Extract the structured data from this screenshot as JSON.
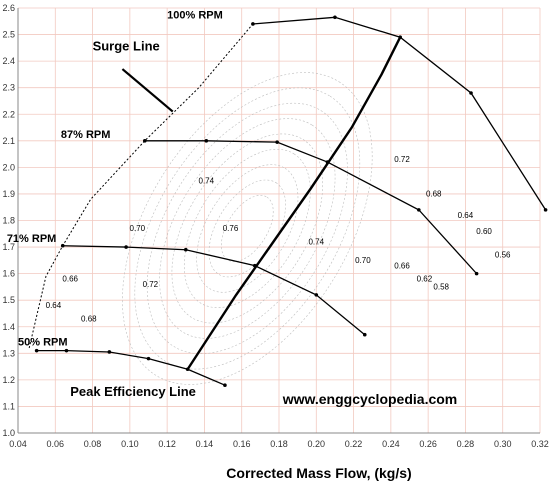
{
  "chart_data": {
    "type": "line",
    "xlabel": "Corrected Mass Flow, (kg/s)",
    "ylabel": "",
    "xlim": [
      0.04,
      0.32
    ],
    "ylim": [
      1.0,
      2.6
    ],
    "x_ticks": [
      "0.04",
      "0.06",
      "0.08",
      "0.10",
      "0.12",
      "0.14",
      "0.16",
      "0.18",
      "0.20",
      "0.22",
      "0.24",
      "0.26",
      "0.28",
      "0.30",
      "0.32"
    ],
    "y_ticks": [
      "1.0",
      "1.1",
      "1.2",
      "1.3",
      "1.4",
      "1.5",
      "1.6",
      "1.7",
      "1.8",
      "1.9",
      "2.0",
      "2.1",
      "2.2",
      "2.3",
      "2.4",
      "2.5",
      "2.6"
    ],
    "grid": true,
    "series": [
      {
        "name": "100% RPM",
        "x": [
          0.166,
          0.21,
          0.245,
          0.283,
          0.323
        ],
        "y": [
          2.54,
          2.565,
          2.49,
          2.28,
          1.84
        ],
        "style": "solid"
      },
      {
        "name": "87% RPM",
        "x": [
          0.108,
          0.141,
          0.179,
          0.206,
          0.255,
          0.286
        ],
        "y": [
          2.1,
          2.1,
          2.095,
          2.02,
          1.84,
          1.6
        ],
        "style": "solid"
      },
      {
        "name": "71% RPM",
        "x": [
          0.064,
          0.098,
          0.13,
          0.167,
          0.2,
          0.226
        ],
        "y": [
          1.705,
          1.7,
          1.69,
          1.63,
          1.52,
          1.37
        ],
        "style": "solid"
      },
      {
        "name": "50% RPM",
        "x": [
          0.05,
          0.066,
          0.089,
          0.11,
          0.131,
          0.151
        ],
        "y": [
          1.31,
          1.31,
          1.305,
          1.28,
          1.24,
          1.18
        ],
        "style": "solid"
      },
      {
        "name": "Surge Line",
        "x": [
          0.046,
          0.055,
          0.064,
          0.079,
          0.108,
          0.137,
          0.166
        ],
        "y": [
          1.32,
          1.59,
          1.705,
          1.88,
          2.1,
          2.3,
          2.54
        ],
        "style": "dashed"
      },
      {
        "name": "Peak Efficiency Line",
        "x": [
          0.131,
          0.157,
          0.177,
          0.197,
          0.219,
          0.235,
          0.245
        ],
        "y": [
          1.24,
          1.52,
          1.72,
          1.92,
          2.15,
          2.35,
          2.49
        ],
        "style": "bold"
      }
    ],
    "annotations": [
      {
        "text": "100% RPM",
        "x": 0.12,
        "y": 2.56
      },
      {
        "text": "87% RPM",
        "x": 0.063,
        "y": 2.11
      },
      {
        "text": "71% RPM",
        "x": 0.034,
        "y": 1.72
      },
      {
        "text": "50% RPM",
        "x": 0.04,
        "y": 1.33
      },
      {
        "text": "Surge Line",
        "x": 0.08,
        "y": 2.44
      },
      {
        "text": "Peak Efficiency Line",
        "x": 0.068,
        "y": 1.14
      },
      {
        "text": "www.enggcyclopedia.com",
        "x": 0.182,
        "y": 1.11
      }
    ],
    "efficiency_labels": [
      {
        "text": "0.74",
        "x": 0.141,
        "y": 1.94
      },
      {
        "text": "0.76",
        "x": 0.154,
        "y": 1.76
      },
      {
        "text": "0.74",
        "x": 0.2,
        "y": 1.71
      },
      {
        "text": "0.72",
        "x": 0.246,
        "y": 2.02
      },
      {
        "text": "0.70",
        "x": 0.104,
        "y": 1.76
      },
      {
        "text": "0.70",
        "x": 0.225,
        "y": 1.64
      },
      {
        "text": "0.68",
        "x": 0.263,
        "y": 1.89
      },
      {
        "text": "0.64",
        "x": 0.28,
        "y": 1.81
      },
      {
        "text": "0.60",
        "x": 0.29,
        "y": 1.75
      },
      {
        "text": "0.56",
        "x": 0.3,
        "y": 1.66
      },
      {
        "text": "0.66",
        "x": 0.246,
        "y": 1.62
      },
      {
        "text": "0.62",
        "x": 0.258,
        "y": 1.57
      },
      {
        "text": "0.58",
        "x": 0.267,
        "y": 1.54
      },
      {
        "text": "0.66",
        "x": 0.068,
        "y": 1.57
      },
      {
        "text": "0.64",
        "x": 0.059,
        "y": 1.47
      },
      {
        "text": "0.68",
        "x": 0.078,
        "y": 1.42
      },
      {
        "text": "0.72",
        "x": 0.111,
        "y": 1.55
      }
    ]
  }
}
